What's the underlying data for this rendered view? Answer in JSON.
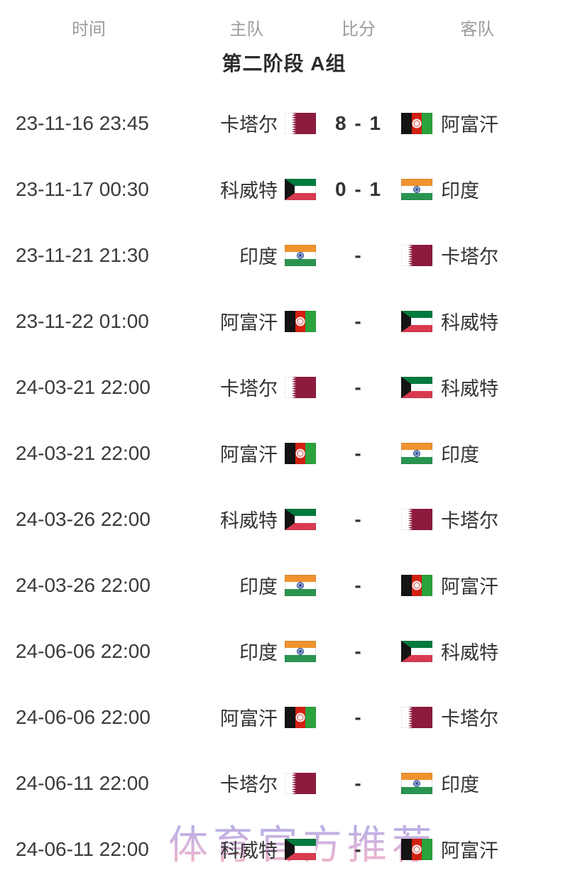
{
  "table": {
    "columns": [
      {
        "key": "time",
        "label": "时间"
      },
      {
        "key": "home",
        "label": "主队"
      },
      {
        "key": "score",
        "label": "比分"
      },
      {
        "key": "away",
        "label": "客队"
      }
    ],
    "section_title": "第二阶段 A组",
    "rows": [
      {
        "time": "23-11-16 23:45",
        "home": {
          "name": "卡塔尔",
          "flag": "qatar"
        },
        "score": "8 - 1",
        "away": {
          "name": "阿富汗",
          "flag": "afghanistan"
        }
      },
      {
        "time": "23-11-17 00:30",
        "home": {
          "name": "科威特",
          "flag": "kuwait"
        },
        "score": "0 - 1",
        "away": {
          "name": "印度",
          "flag": "india"
        }
      },
      {
        "time": "23-11-21 21:30",
        "home": {
          "name": "印度",
          "flag": "india"
        },
        "score": "-",
        "away": {
          "name": "卡塔尔",
          "flag": "qatar"
        }
      },
      {
        "time": "23-11-22 01:00",
        "home": {
          "name": "阿富汗",
          "flag": "afghanistan"
        },
        "score": "-",
        "away": {
          "name": "科威特",
          "flag": "kuwait"
        }
      },
      {
        "time": "24-03-21 22:00",
        "home": {
          "name": "卡塔尔",
          "flag": "qatar"
        },
        "score": "-",
        "away": {
          "name": "科威特",
          "flag": "kuwait"
        }
      },
      {
        "time": "24-03-21 22:00",
        "home": {
          "name": "阿富汗",
          "flag": "afghanistan"
        },
        "score": "-",
        "away": {
          "name": "印度",
          "flag": "india"
        }
      },
      {
        "time": "24-03-26 22:00",
        "home": {
          "name": "科威特",
          "flag": "kuwait"
        },
        "score": "-",
        "away": {
          "name": "卡塔尔",
          "flag": "qatar"
        }
      },
      {
        "time": "24-03-26 22:00",
        "home": {
          "name": "印度",
          "flag": "india"
        },
        "score": "-",
        "away": {
          "name": "阿富汗",
          "flag": "afghanistan"
        }
      },
      {
        "time": "24-06-06 22:00",
        "home": {
          "name": "印度",
          "flag": "india"
        },
        "score": "-",
        "away": {
          "name": "科威特",
          "flag": "kuwait"
        }
      },
      {
        "time": "24-06-06 22:00",
        "home": {
          "name": "阿富汗",
          "flag": "afghanistan"
        },
        "score": "-",
        "away": {
          "name": "卡塔尔",
          "flag": "qatar"
        }
      },
      {
        "time": "24-06-11 22:00",
        "home": {
          "name": "卡塔尔",
          "flag": "qatar"
        },
        "score": "-",
        "away": {
          "name": "印度",
          "flag": "india"
        }
      },
      {
        "time": "24-06-11 22:00",
        "home": {
          "name": "科威特",
          "flag": "kuwait"
        },
        "score": "-",
        "away": {
          "name": "阿富汗",
          "flag": "afghanistan"
        }
      }
    ]
  },
  "watermark": {
    "text": "体育官方推荐"
  },
  "colors": {
    "header_text": "#9c9c9c",
    "body_text": "#3a3a3a",
    "title_text": "#2c2c2c",
    "watermark_top": "#b4aee8",
    "watermark_bottom": "#f7b5c6",
    "qatar_maroon": "#8d1b3d",
    "afghanistan_black": "#141414",
    "afghanistan_red": "#d32011",
    "afghanistan_green": "#2ba23c",
    "kuwait_green": "#007a3d",
    "kuwait_red": "#d93a4f",
    "kuwait_black": "#141414",
    "india_saffron": "#f0932f",
    "india_green": "#2a9550",
    "india_navy": "#1a3c8f"
  }
}
